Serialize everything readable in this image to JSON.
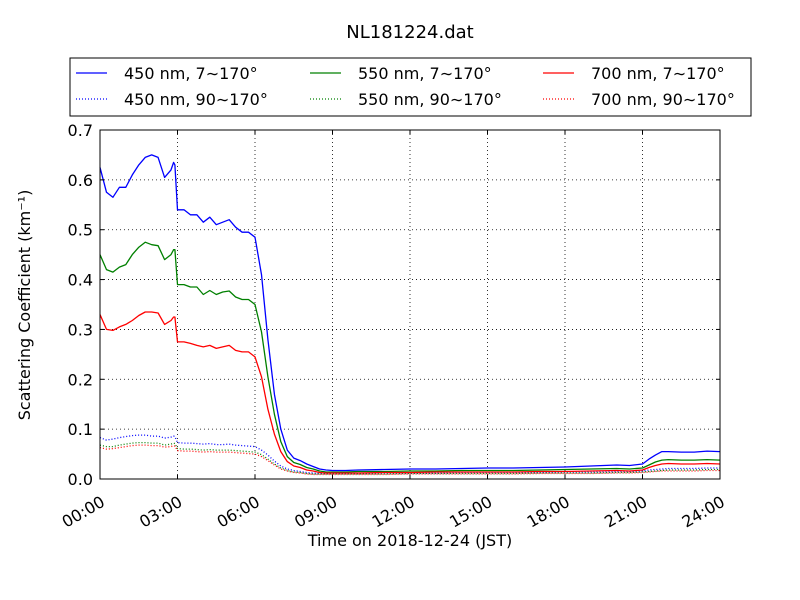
{
  "chart_data": {
    "type": "line",
    "title": "NL181224.dat",
    "xlabel": "Time on 2018-12-24 (JST)",
    "ylabel": "Scattering Coefficient (km⁻¹)",
    "xlim": [
      0,
      24
    ],
    "ylim": [
      0,
      0.7
    ],
    "x_ticks": [
      0,
      3,
      6,
      9,
      12,
      15,
      18,
      21,
      24
    ],
    "x_tick_labels": [
      "00:00",
      "03:00",
      "06:00",
      "09:00",
      "12:00",
      "15:00",
      "18:00",
      "21:00",
      "24:00"
    ],
    "y_ticks": [
      0,
      0.1,
      0.2,
      0.3,
      0.4,
      0.5,
      0.6,
      0.7
    ],
    "y_tick_labels": [
      "0.0",
      "0.1",
      "0.2",
      "0.3",
      "0.4",
      "0.5",
      "0.6",
      "0.7"
    ],
    "grid": true,
    "legend_position": "top",
    "x_hours": [
      0,
      0.25,
      0.5,
      0.75,
      1.0,
      1.25,
      1.5,
      1.75,
      2.0,
      2.25,
      2.5,
      2.75,
      2.85,
      2.9,
      3.0,
      3.25,
      3.5,
      3.75,
      4.0,
      4.25,
      4.5,
      4.75,
      5.0,
      5.25,
      5.5,
      5.75,
      6.0,
      6.25,
      6.5,
      6.75,
      7.0,
      7.25,
      7.5,
      7.75,
      8.0,
      8.25,
      8.5,
      8.75,
      9.0,
      9.5,
      10.0,
      11.0,
      12.0,
      13.0,
      14.0,
      15.0,
      16.0,
      17.0,
      18.0,
      19.0,
      20.0,
      20.5,
      21.0,
      21.25,
      21.5,
      21.75,
      22.0,
      22.5,
      23.0,
      23.5,
      24.0
    ],
    "series": [
      {
        "name": "450 nm, 7∼170°",
        "style": "solid",
        "color": "#0000ff",
        "values": [
          0.625,
          0.575,
          0.565,
          0.585,
          0.585,
          0.61,
          0.63,
          0.645,
          0.65,
          0.645,
          0.605,
          0.62,
          0.635,
          0.63,
          0.54,
          0.54,
          0.53,
          0.53,
          0.515,
          0.525,
          0.51,
          0.515,
          0.52,
          0.505,
          0.495,
          0.495,
          0.485,
          0.41,
          0.28,
          0.17,
          0.1,
          0.058,
          0.042,
          0.037,
          0.03,
          0.025,
          0.02,
          0.018,
          0.017,
          0.017,
          0.018,
          0.019,
          0.02,
          0.02,
          0.021,
          0.022,
          0.022,
          0.023,
          0.024,
          0.026,
          0.028,
          0.027,
          0.03,
          0.04,
          0.048,
          0.055,
          0.055,
          0.054,
          0.054,
          0.056,
          0.055
        ]
      },
      {
        "name": "550 nm, 7∼170°",
        "style": "solid",
        "color": "#008000",
        "values": [
          0.45,
          0.42,
          0.415,
          0.425,
          0.43,
          0.45,
          0.465,
          0.475,
          0.47,
          0.468,
          0.44,
          0.45,
          0.46,
          0.46,
          0.39,
          0.39,
          0.385,
          0.385,
          0.37,
          0.378,
          0.37,
          0.375,
          0.377,
          0.365,
          0.36,
          0.36,
          0.35,
          0.295,
          0.205,
          0.13,
          0.075,
          0.045,
          0.033,
          0.029,
          0.023,
          0.02,
          0.016,
          0.014,
          0.014,
          0.014,
          0.015,
          0.015,
          0.016,
          0.016,
          0.017,
          0.017,
          0.017,
          0.018,
          0.019,
          0.02,
          0.021,
          0.02,
          0.022,
          0.028,
          0.034,
          0.038,
          0.039,
          0.038,
          0.038,
          0.039,
          0.038
        ]
      },
      {
        "name": "700 nm, 7∼170°",
        "style": "solid",
        "color": "#ff0000",
        "values": [
          0.33,
          0.3,
          0.298,
          0.305,
          0.31,
          0.318,
          0.328,
          0.335,
          0.335,
          0.333,
          0.31,
          0.318,
          0.325,
          0.325,
          0.275,
          0.275,
          0.272,
          0.268,
          0.265,
          0.268,
          0.262,
          0.265,
          0.268,
          0.258,
          0.255,
          0.255,
          0.245,
          0.205,
          0.14,
          0.09,
          0.055,
          0.035,
          0.026,
          0.023,
          0.018,
          0.016,
          0.013,
          0.012,
          0.012,
          0.012,
          0.012,
          0.013,
          0.013,
          0.014,
          0.014,
          0.014,
          0.014,
          0.015,
          0.015,
          0.016,
          0.017,
          0.016,
          0.018,
          0.023,
          0.027,
          0.03,
          0.031,
          0.03,
          0.03,
          0.031,
          0.03
        ]
      },
      {
        "name": "450 nm, 90∼170°",
        "style": "dotted",
        "color": "#0000ff",
        "values": [
          0.083,
          0.078,
          0.08,
          0.083,
          0.085,
          0.087,
          0.088,
          0.088,
          0.086,
          0.086,
          0.082,
          0.084,
          0.086,
          0.085,
          0.073,
          0.072,
          0.072,
          0.071,
          0.07,
          0.071,
          0.069,
          0.069,
          0.07,
          0.068,
          0.067,
          0.066,
          0.065,
          0.058,
          0.048,
          0.036,
          0.026,
          0.02,
          0.017,
          0.015,
          0.013,
          0.012,
          0.011,
          0.011,
          0.011,
          0.011,
          0.011,
          0.012,
          0.012,
          0.012,
          0.013,
          0.013,
          0.013,
          0.013,
          0.014,
          0.014,
          0.015,
          0.015,
          0.016,
          0.018,
          0.019,
          0.02,
          0.021,
          0.021,
          0.021,
          0.022,
          0.022
        ]
      },
      {
        "name": "550 nm, 90∼170°",
        "style": "dotted",
        "color": "#008000",
        "values": [
          0.068,
          0.065,
          0.065,
          0.068,
          0.07,
          0.072,
          0.073,
          0.073,
          0.072,
          0.072,
          0.068,
          0.07,
          0.072,
          0.071,
          0.061,
          0.06,
          0.06,
          0.059,
          0.058,
          0.059,
          0.058,
          0.058,
          0.058,
          0.057,
          0.056,
          0.055,
          0.054,
          0.049,
          0.04,
          0.03,
          0.022,
          0.017,
          0.014,
          0.013,
          0.011,
          0.01,
          0.01,
          0.01,
          0.01,
          0.01,
          0.01,
          0.01,
          0.011,
          0.011,
          0.011,
          0.011,
          0.011,
          0.012,
          0.012,
          0.012,
          0.013,
          0.013,
          0.014,
          0.015,
          0.016,
          0.017,
          0.018,
          0.018,
          0.018,
          0.019,
          0.019
        ]
      },
      {
        "name": "700 nm, 90∼170°",
        "style": "dotted",
        "color": "#ff0000",
        "values": [
          0.063,
          0.06,
          0.061,
          0.063,
          0.065,
          0.067,
          0.068,
          0.068,
          0.067,
          0.067,
          0.064,
          0.065,
          0.067,
          0.066,
          0.057,
          0.056,
          0.056,
          0.055,
          0.054,
          0.055,
          0.054,
          0.054,
          0.054,
          0.053,
          0.052,
          0.051,
          0.05,
          0.045,
          0.037,
          0.028,
          0.02,
          0.016,
          0.013,
          0.012,
          0.01,
          0.009,
          0.009,
          0.009,
          0.009,
          0.009,
          0.009,
          0.009,
          0.01,
          0.01,
          0.01,
          0.01,
          0.01,
          0.011,
          0.011,
          0.011,
          0.012,
          0.012,
          0.013,
          0.014,
          0.015,
          0.016,
          0.016,
          0.016,
          0.016,
          0.017,
          0.017
        ]
      }
    ],
    "legend_order": [
      0,
      1,
      2,
      3,
      4,
      5
    ]
  }
}
